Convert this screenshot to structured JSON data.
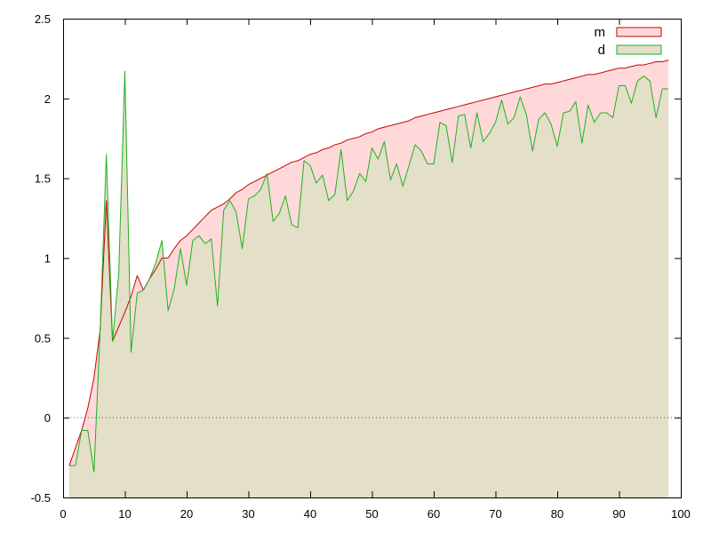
{
  "chart_data": {
    "type": "area",
    "title": "",
    "xlabel": "",
    "ylabel": "",
    "xlim": [
      0,
      100
    ],
    "ylim": [
      -0.5,
      2.5
    ],
    "x_ticks": [
      0,
      10,
      20,
      30,
      40,
      50,
      60,
      70,
      80,
      90,
      100
    ],
    "y_ticks": [
      -0.5,
      0,
      0.5,
      1,
      1.5,
      2,
      2.5
    ],
    "x_tick_labels": [
      "0",
      "10",
      "20",
      "30",
      "40",
      "50",
      "60",
      "70",
      "80",
      "90",
      "100"
    ],
    "y_tick_labels": [
      "-0.5",
      "0",
      "0.5",
      "1",
      "1.5",
      "2",
      "2.5"
    ],
    "zero_line": true,
    "grid": false,
    "legend_position": "top-right",
    "series": [
      {
        "name": "m",
        "color": "#cc0000",
        "fill": "#ffd9d9",
        "x": [
          1,
          2,
          3,
          4,
          5,
          6,
          7,
          8,
          9,
          10,
          11,
          12,
          13,
          14,
          15,
          16,
          17,
          18,
          19,
          20,
          21,
          22,
          23,
          24,
          25,
          26,
          27,
          28,
          29,
          30,
          31,
          32,
          33,
          34,
          35,
          36,
          37,
          38,
          39,
          40,
          41,
          42,
          43,
          44,
          45,
          46,
          47,
          48,
          49,
          50,
          51,
          52,
          53,
          54,
          55,
          56,
          57,
          58,
          59,
          60,
          61,
          62,
          63,
          64,
          65,
          66,
          67,
          68,
          69,
          70,
          71,
          72,
          73,
          74,
          75,
          76,
          77,
          78,
          79,
          80,
          81,
          82,
          83,
          84,
          85,
          86,
          87,
          88,
          89,
          90,
          91,
          92,
          93,
          94,
          95,
          96,
          97,
          98
        ],
        "values": [
          -0.3,
          -0.19,
          -0.08,
          0.06,
          0.25,
          0.55,
          1.36,
          0.48,
          0.57,
          0.66,
          0.76,
          0.89,
          0.8,
          0.87,
          0.93,
          1.0,
          1.0,
          1.06,
          1.11,
          1.14,
          1.18,
          1.22,
          1.26,
          1.3,
          1.32,
          1.34,
          1.37,
          1.41,
          1.43,
          1.46,
          1.48,
          1.5,
          1.52,
          1.54,
          1.56,
          1.58,
          1.6,
          1.61,
          1.63,
          1.65,
          1.66,
          1.68,
          1.69,
          1.71,
          1.72,
          1.74,
          1.75,
          1.76,
          1.78,
          1.79,
          1.81,
          1.82,
          1.83,
          1.84,
          1.85,
          1.86,
          1.88,
          1.89,
          1.9,
          1.91,
          1.92,
          1.93,
          1.94,
          1.95,
          1.96,
          1.97,
          1.98,
          1.99,
          2.0,
          2.01,
          2.02,
          2.03,
          2.04,
          2.05,
          2.06,
          2.07,
          2.08,
          2.09,
          2.09,
          2.1,
          2.11,
          2.12,
          2.13,
          2.14,
          2.15,
          2.15,
          2.16,
          2.17,
          2.18,
          2.19,
          2.19,
          2.2,
          2.21,
          2.21,
          2.22,
          2.23,
          2.23,
          2.24
        ]
      },
      {
        "name": "d",
        "color": "#1fb21f",
        "fill": "#e3dfc8",
        "x": [
          1,
          2,
          3,
          4,
          5,
          6,
          7,
          8,
          9,
          10,
          11,
          12,
          13,
          14,
          15,
          16,
          17,
          18,
          19,
          20,
          21,
          22,
          23,
          24,
          25,
          26,
          27,
          28,
          29,
          30,
          31,
          32,
          33,
          34,
          35,
          36,
          37,
          38,
          39,
          40,
          41,
          42,
          43,
          44,
          45,
          46,
          47,
          48,
          49,
          50,
          51,
          52,
          53,
          54,
          55,
          56,
          57,
          58,
          59,
          60,
          61,
          62,
          63,
          64,
          65,
          66,
          67,
          68,
          69,
          70,
          71,
          72,
          73,
          74,
          75,
          76,
          77,
          78,
          79,
          80,
          81,
          82,
          83,
          84,
          85,
          86,
          87,
          88,
          89,
          90,
          91,
          92,
          93,
          94,
          95,
          96,
          97,
          98
        ],
        "values": [
          -0.3,
          -0.3,
          -0.08,
          -0.08,
          -0.34,
          0.55,
          1.65,
          0.48,
          0.9,
          2.17,
          0.41,
          0.78,
          0.8,
          0.87,
          0.97,
          1.11,
          0.67,
          0.81,
          1.06,
          0.83,
          1.11,
          1.14,
          1.09,
          1.12,
          0.7,
          1.3,
          1.36,
          1.29,
          1.06,
          1.37,
          1.39,
          1.43,
          1.53,
          1.23,
          1.28,
          1.39,
          1.21,
          1.19,
          1.61,
          1.58,
          1.47,
          1.52,
          1.36,
          1.4,
          1.68,
          1.36,
          1.42,
          1.53,
          1.48,
          1.69,
          1.62,
          1.73,
          1.49,
          1.59,
          1.45,
          1.58,
          1.71,
          1.67,
          1.59,
          1.59,
          1.85,
          1.83,
          1.6,
          1.89,
          1.9,
          1.69,
          1.91,
          1.73,
          1.78,
          1.85,
          1.99,
          1.84,
          1.88,
          2.01,
          1.9,
          1.67,
          1.87,
          1.91,
          1.84,
          1.7,
          1.91,
          1.92,
          1.98,
          1.72,
          1.96,
          1.85,
          1.91,
          1.91,
          1.88,
          2.08,
          2.08,
          1.97,
          2.11,
          2.14,
          2.11,
          1.88,
          2.06,
          2.06
        ]
      }
    ]
  }
}
